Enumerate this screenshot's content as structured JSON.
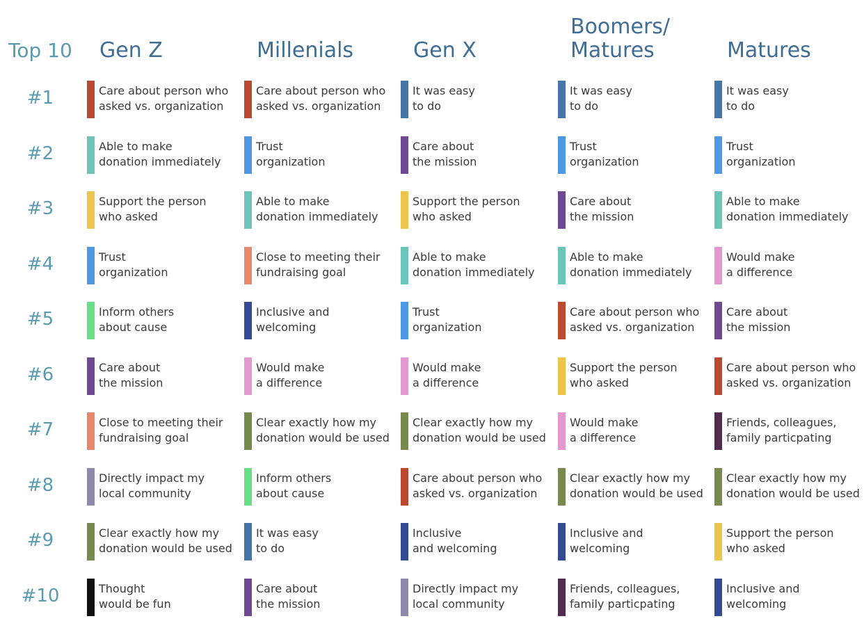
{
  "top_label": "Top 10",
  "columns": [
    "Gen Z",
    "Millenials",
    "Gen X",
    "Boomers/\nMatures",
    "Matures"
  ],
  "ranks": [
    "#1",
    "#2",
    "#3",
    "#4",
    "#5",
    "#6",
    "#7",
    "#8",
    "#9",
    "#10"
  ],
  "palette": {
    "care_person": "#b94a30",
    "easy": "#4675a8",
    "able": "#6cc3b7",
    "trust": "#4d98e2",
    "mission": "#6f4a92",
    "support": "#ebc64a",
    "close_goal": "#e7876c",
    "difference": "#e399cf",
    "inclusive": "#344b93",
    "inform": "#67df85",
    "clear": "#758a4c",
    "local": "#8f88a8",
    "friends": "#532b4f",
    "fun": "#111111"
  },
  "grid": [
    [
      {
        "text": "Care about person who\nasked vs. organization",
        "color": "care_person"
      },
      {
        "text": "Care about person who\nasked vs. organization",
        "color": "care_person"
      },
      {
        "text": "It was easy\nto do",
        "color": "easy"
      },
      {
        "text": "It was easy\nto do",
        "color": "easy"
      },
      {
        "text": "It was easy\nto do",
        "color": "easy"
      }
    ],
    [
      {
        "text": "Able to make\ndonation immediately",
        "color": "able"
      },
      {
        "text": "Trust\norganization",
        "color": "trust"
      },
      {
        "text": "Care about\nthe mission",
        "color": "mission"
      },
      {
        "text": "Trust\norganization",
        "color": "trust"
      },
      {
        "text": "Trust\norganization",
        "color": "trust"
      }
    ],
    [
      {
        "text": "Support the person\nwho asked",
        "color": "support"
      },
      {
        "text": "Able to make\ndonation immediately",
        "color": "able"
      },
      {
        "text": "Support the person\nwho asked",
        "color": "support"
      },
      {
        "text": "Care about\nthe mission",
        "color": "mission"
      },
      {
        "text": "Able to make\ndonation immediately",
        "color": "able"
      }
    ],
    [
      {
        "text": "Trust\norganization",
        "color": "trust"
      },
      {
        "text": "Close to meeting their\nfundraising goal",
        "color": "close_goal"
      },
      {
        "text": "Able to make\ndonation immediately",
        "color": "able"
      },
      {
        "text": "Able to make\ndonation immediately",
        "color": "able"
      },
      {
        "text": "Would make\na difference",
        "color": "difference"
      }
    ],
    [
      {
        "text": "Inform others\nabout cause",
        "color": "inform"
      },
      {
        "text": "Inclusive and\nwelcoming",
        "color": "inclusive"
      },
      {
        "text": "Trust\norganization",
        "color": "trust"
      },
      {
        "text": "Care about person who\nasked vs. organization",
        "color": "care_person"
      },
      {
        "text": "Care about\nthe mission",
        "color": "mission"
      }
    ],
    [
      {
        "text": "Care about\nthe mission",
        "color": "mission"
      },
      {
        "text": "Would make\na difference",
        "color": "difference"
      },
      {
        "text": "Would make\na difference",
        "color": "difference"
      },
      {
        "text": "Support the person\nwho asked",
        "color": "support"
      },
      {
        "text": "Care about person who\nasked vs. organization",
        "color": "care_person"
      }
    ],
    [
      {
        "text": "Close to meeting their\nfundraising goal",
        "color": "close_goal"
      },
      {
        "text": "Clear exactly how my\ndonation would be used",
        "color": "clear"
      },
      {
        "text": "Clear exactly how my\ndonation would be used",
        "color": "clear"
      },
      {
        "text": "Would make\na difference",
        "color": "difference"
      },
      {
        "text": "Friends, colleagues,\nfamily particpating",
        "color": "friends"
      }
    ],
    [
      {
        "text": "Directly impact my\nlocal community",
        "color": "local"
      },
      {
        "text": "Inform others\nabout cause",
        "color": "inform"
      },
      {
        "text": "Care about person who\nasked vs. organization",
        "color": "care_person"
      },
      {
        "text": "Clear exactly how my\ndonation would be used",
        "color": "clear"
      },
      {
        "text": "Clear exactly how my\ndonation would be used",
        "color": "clear"
      }
    ],
    [
      {
        "text": "Clear exactly how my\ndonation would be used",
        "color": "clear"
      },
      {
        "text": "It was easy\nto do",
        "color": "easy"
      },
      {
        "text": "Inclusive\nand welcoming",
        "color": "inclusive"
      },
      {
        "text": "Inclusive and\nwelcoming",
        "color": "inclusive"
      },
      {
        "text": "Support the person\nwho asked",
        "color": "support"
      }
    ],
    [
      {
        "text": "Thought\nwould be fun",
        "color": "fun"
      },
      {
        "text": "Care about\nthe mission",
        "color": "mission"
      },
      {
        "text": "Directly impact my\nlocal community",
        "color": "local"
      },
      {
        "text": "Friends, colleagues,\nfamily particpating",
        "color": "friends"
      },
      {
        "text": "Inclusive and\nwelcoming",
        "color": "inclusive"
      }
    ]
  ]
}
